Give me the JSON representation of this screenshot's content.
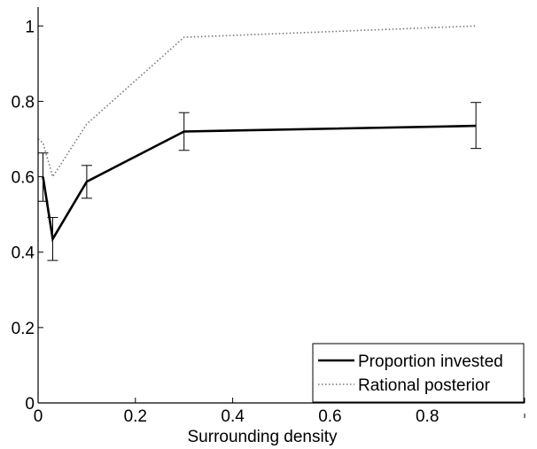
{
  "chart_data": {
    "type": "line",
    "title": "",
    "xlabel": "Surrounding density",
    "ylabel": "",
    "xlim": [
      0,
      1
    ],
    "ylim": [
      0,
      1.05
    ],
    "x_ticks": [
      0,
      0.2,
      0.4,
      0.6,
      0.8
    ],
    "x_tick_labels": [
      "0",
      "0.2",
      "0.4",
      "0.6",
      "0.8"
    ],
    "y_ticks": [
      0,
      0.2,
      0.4,
      0.6,
      0.8,
      1
    ],
    "y_tick_labels": [
      "0",
      "0.2",
      "0.4",
      "0.6",
      "0.8",
      "1"
    ],
    "grid": false,
    "legend_position": "bottom-right",
    "series": [
      {
        "name": "Proportion invested",
        "color": "#000000",
        "line_style": "solid",
        "x": [
          0.01,
          0.03,
          0.1,
          0.3,
          0.9
        ],
        "y": [
          0.6,
          0.435,
          0.587,
          0.72,
          0.735
        ],
        "error_low": [
          0.535,
          0.378,
          0.543,
          0.67,
          0.675
        ],
        "error_high": [
          0.663,
          0.492,
          0.63,
          0.77,
          0.797
        ]
      },
      {
        "name": "Rational posterior",
        "color": "#777777",
        "line_style": "dotted",
        "x": [
          0.0,
          0.01,
          0.03,
          0.1,
          0.3,
          0.9
        ],
        "y": [
          0.7,
          0.69,
          0.6,
          0.74,
          0.97,
          1.0
        ]
      }
    ]
  }
}
